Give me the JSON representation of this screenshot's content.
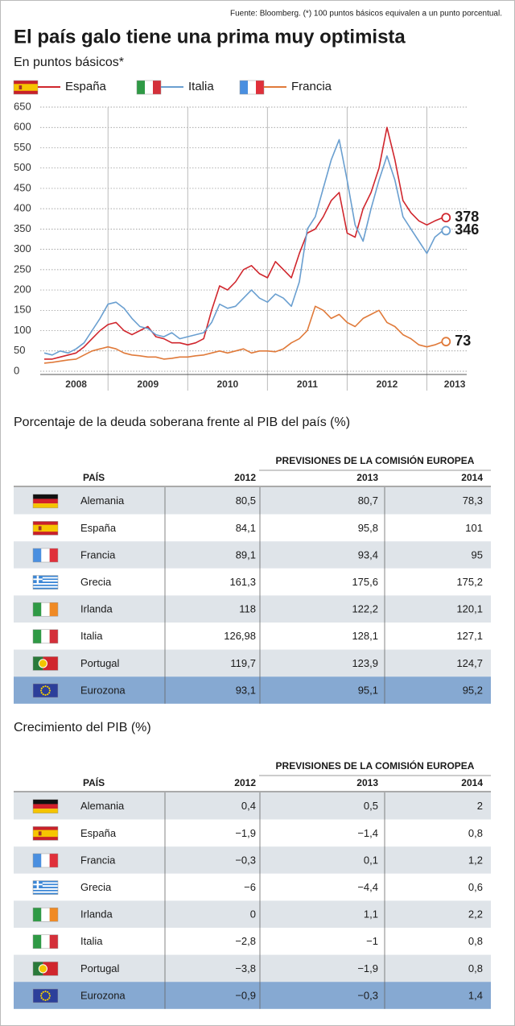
{
  "source": "Fuente: Bloomberg. (*) 100 puntos básicos equivalen a un punto porcentual.",
  "chart_data": {
    "type": "line",
    "title": "El país galo tiene una prima muy optimista",
    "subtitle": "En puntos básicos*",
    "x": [
      2008.2,
      2008.3,
      2008.4,
      2008.5,
      2008.6,
      2008.7,
      2008.8,
      2008.9,
      2009.0,
      2009.1,
      2009.2,
      2009.3,
      2009.4,
      2009.5,
      2009.6,
      2009.7,
      2009.8,
      2009.9,
      2010.0,
      2010.1,
      2010.2,
      2010.3,
      2010.4,
      2010.5,
      2010.6,
      2010.7,
      2010.8,
      2010.9,
      2011.0,
      2011.1,
      2011.2,
      2011.3,
      2011.4,
      2011.5,
      2011.6,
      2011.7,
      2011.8,
      2011.9,
      2012.0,
      2012.1,
      2012.2,
      2012.3,
      2012.4,
      2012.5,
      2012.6,
      2012.7,
      2012.8,
      2012.9,
      2013.0,
      2013.1,
      2013.2
    ],
    "xlim": [
      2008.2,
      2013.5
    ],
    "xticks": [
      2009,
      2010,
      2011,
      2012,
      2013
    ],
    "x_labels": [
      {
        "value": 2008.6,
        "label": "2008"
      },
      {
        "value": 2009.5,
        "label": "2009"
      },
      {
        "value": 2010.5,
        "label": "2010"
      },
      {
        "value": 2011.5,
        "label": "2011"
      },
      {
        "value": 2012.5,
        "label": "2012"
      },
      {
        "value": 2013.35,
        "label": "2013"
      }
    ],
    "ylim": [
      0,
      650
    ],
    "yticks": [
      0,
      50,
      100,
      150,
      200,
      250,
      300,
      350,
      400,
      450,
      500,
      550,
      600,
      650
    ],
    "grid": true,
    "series": [
      {
        "name": "España",
        "color": "#d0262d",
        "values": [
          30,
          30,
          35,
          40,
          45,
          60,
          80,
          100,
          115,
          120,
          100,
          90,
          100,
          110,
          85,
          80,
          70,
          70,
          65,
          70,
          80,
          150,
          210,
          200,
          220,
          250,
          260,
          240,
          230,
          270,
          250,
          230,
          290,
          340,
          350,
          380,
          420,
          440,
          340,
          330,
          400,
          440,
          500,
          600,
          520,
          420,
          390,
          370,
          360,
          370,
          378
        ]
      },
      {
        "name": "Italia",
        "color": "#6a9fd0",
        "values": [
          45,
          40,
          50,
          45,
          55,
          70,
          100,
          130,
          165,
          170,
          155,
          130,
          110,
          105,
          90,
          85,
          95,
          80,
          85,
          90,
          95,
          120,
          165,
          155,
          160,
          180,
          200,
          180,
          170,
          190,
          180,
          160,
          220,
          350,
          380,
          450,
          520,
          570,
          470,
          360,
          320,
          400,
          470,
          530,
          470,
          380,
          350,
          320,
          290,
          330,
          346
        ]
      },
      {
        "name": "Francia",
        "color": "#e07a3a",
        "values": [
          20,
          22,
          25,
          28,
          30,
          40,
          50,
          55,
          60,
          55,
          45,
          40,
          38,
          35,
          35,
          30,
          32,
          35,
          35,
          38,
          40,
          45,
          50,
          45,
          50,
          55,
          45,
          50,
          50,
          48,
          55,
          70,
          80,
          100,
          160,
          150,
          130,
          140,
          120,
          110,
          130,
          140,
          150,
          120,
          110,
          90,
          80,
          65,
          60,
          65,
          73
        ]
      }
    ]
  },
  "debt_table": {
    "title": "Porcentaje de la deuda soberana frente al PIB del país (%)",
    "group_header": "PREVISIONES DE LA COMISIÓN EUROPEA",
    "country_header": "PAÍS",
    "years": [
      "2012",
      "2013",
      "2014"
    ],
    "rows": [
      [
        "Alemania",
        "80,5",
        "80,7",
        "78,3"
      ],
      [
        "España",
        "84,1",
        "95,8",
        "101"
      ],
      [
        "Francia",
        "89,1",
        "93,4",
        "95"
      ],
      [
        "Grecia",
        "161,3",
        "175,6",
        "175,2"
      ],
      [
        "Irlanda",
        "118",
        "122,2",
        "120,1"
      ],
      [
        "Italia",
        "126,98",
        "128,1",
        "127,1"
      ],
      [
        "Portugal",
        "119,7",
        "123,9",
        "124,7"
      ],
      [
        "Eurozona",
        "93,1",
        "95,1",
        "95,2"
      ]
    ]
  },
  "gdp_table": {
    "title": "Crecimiento del PIB (%)",
    "group_header": "PREVISIONES DE LA COMISIÓN EUROPEA",
    "country_header": "PAÍS",
    "years": [
      "2012",
      "2013",
      "2014"
    ],
    "rows": [
      [
        "Alemania",
        "0,4",
        "0,5",
        "2"
      ],
      [
        "España",
        "−1,9",
        "−1,4",
        "0,8"
      ],
      [
        "Francia",
        "−0,3",
        "0,1",
        "1,2"
      ],
      [
        "Grecia",
        "−6",
        "−4,4",
        "0,6"
      ],
      [
        "Irlanda",
        "0",
        "1,1",
        "2,2"
      ],
      [
        "Italia",
        "−2,8",
        "−1",
        "0,8"
      ],
      [
        "Portugal",
        "−3,8",
        "−1,9",
        "0,8"
      ],
      [
        "Eurozona",
        "−0,9",
        "−0,3",
        "1,4"
      ]
    ]
  }
}
